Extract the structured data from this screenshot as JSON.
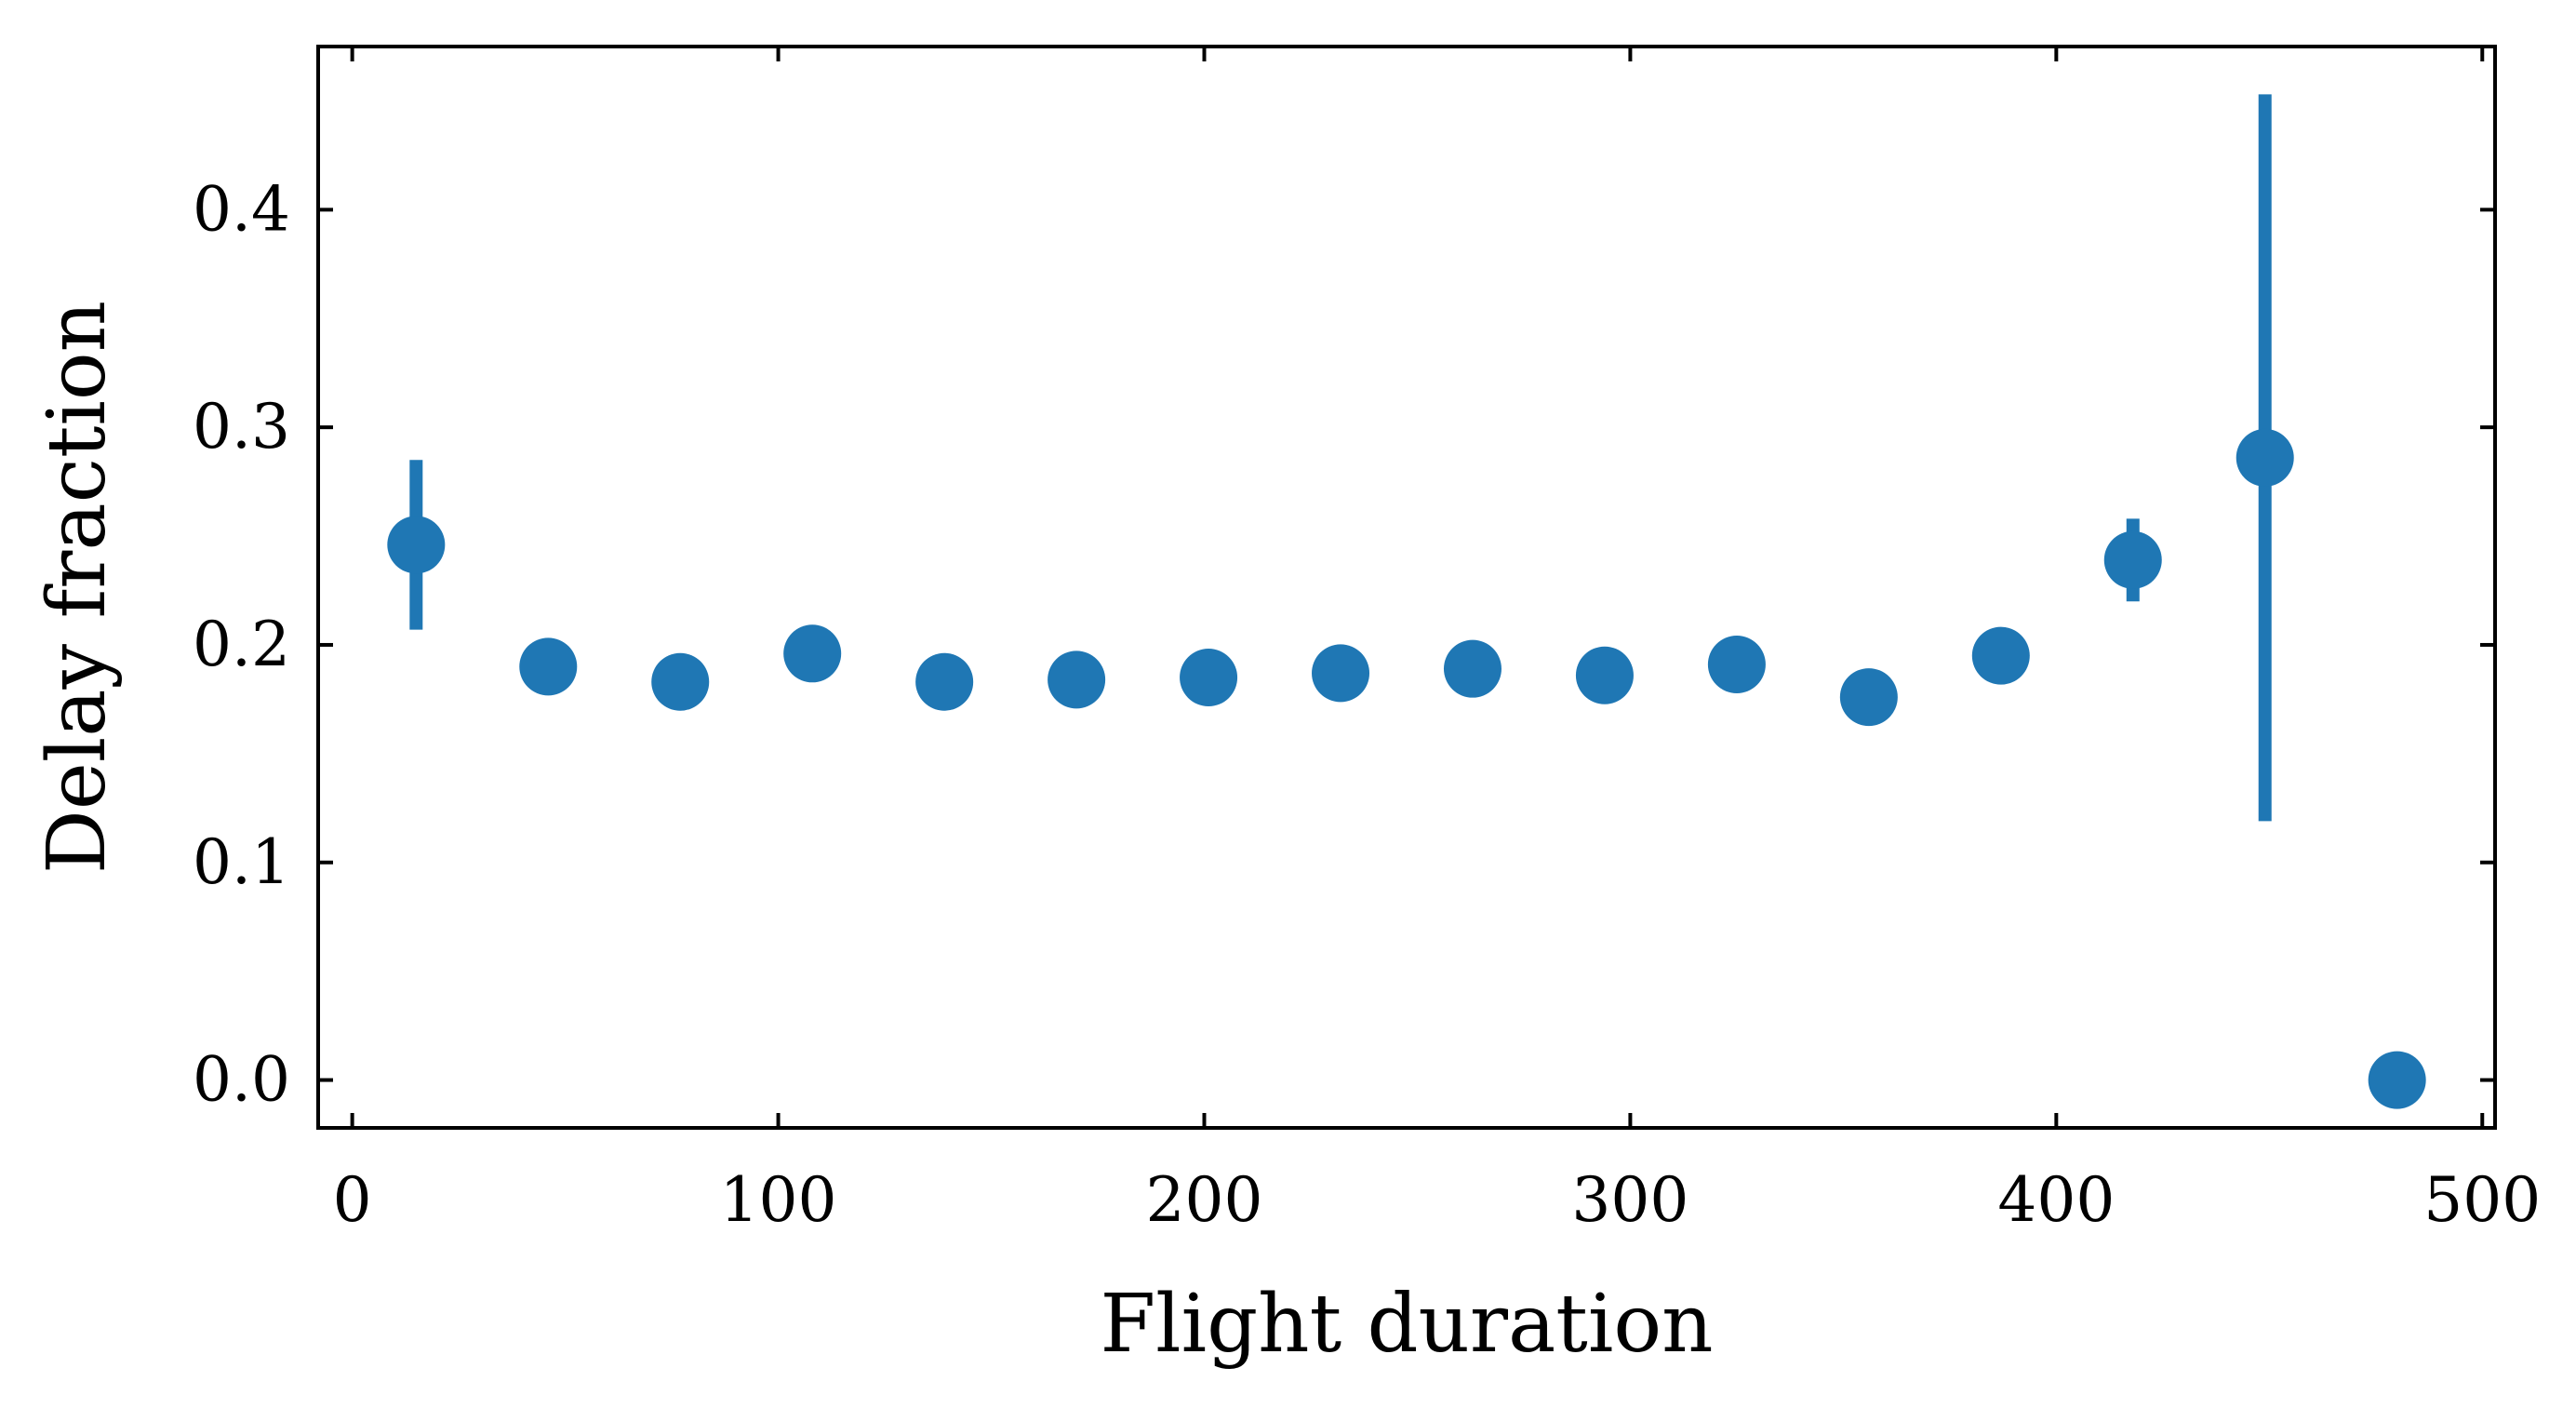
{
  "chart_data": {
    "type": "scatter",
    "title": "",
    "xlabel": "Flight duration",
    "ylabel": "Delay fraction",
    "xlim": [
      -8,
      503
    ],
    "ylim": [
      -0.022,
      0.475
    ],
    "xticks": [
      0,
      100,
      200,
      300,
      400,
      500
    ],
    "yticks": [
      0.0,
      0.1,
      0.2,
      0.3,
      0.4
    ],
    "xtick_labels": [
      "0",
      "100",
      "200",
      "300",
      "400",
      "500"
    ],
    "ytick_labels": [
      "0.0",
      "0.1",
      "0.2",
      "0.3",
      "0.4"
    ],
    "grid": false,
    "legend": "none",
    "color": "#1f77b4",
    "series": [
      {
        "points": [
          {
            "x": 15,
            "y": 0.246,
            "err": 0.039
          },
          {
            "x": 46,
            "y": 0.19,
            "err": 0
          },
          {
            "x": 77,
            "y": 0.183,
            "err": 0
          },
          {
            "x": 108,
            "y": 0.196,
            "err": 0
          },
          {
            "x": 139,
            "y": 0.183,
            "err": 0
          },
          {
            "x": 170,
            "y": 0.184,
            "err": 0
          },
          {
            "x": 201,
            "y": 0.185,
            "err": 0
          },
          {
            "x": 232,
            "y": 0.187,
            "err": 0
          },
          {
            "x": 263,
            "y": 0.189,
            "err": 0
          },
          {
            "x": 294,
            "y": 0.186,
            "err": 0
          },
          {
            "x": 325,
            "y": 0.191,
            "err": 0
          },
          {
            "x": 356,
            "y": 0.176,
            "err": 0
          },
          {
            "x": 387,
            "y": 0.195,
            "err": 0
          },
          {
            "x": 418,
            "y": 0.239,
            "err": 0.019
          },
          {
            "x": 449,
            "y": 0.286,
            "err": 0.167
          },
          {
            "x": 480,
            "y": 0.0,
            "err": 0
          }
        ]
      }
    ]
  }
}
